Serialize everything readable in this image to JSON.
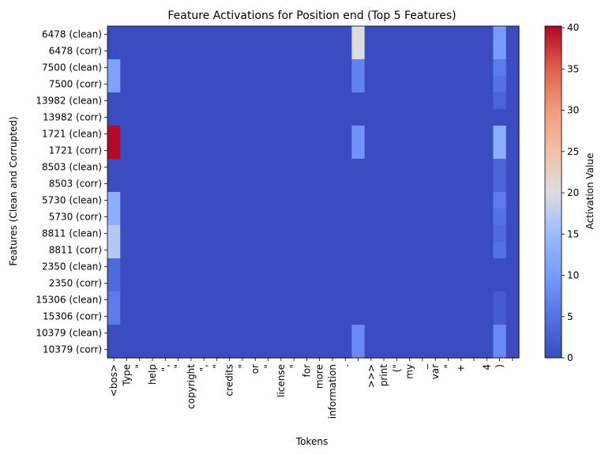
{
  "chart_data": {
    "type": "heatmap",
    "title": "Feature Activations for Position end (Top 5 Features)",
    "xlabel": "Tokens",
    "ylabel": "Features (Clean and Corrupted)",
    "colorbar_label": "Activation Value",
    "colormap": "coolwarm",
    "vmin": 0,
    "vmax": 40.2,
    "colorbar_ticks": [
      0,
      5,
      10,
      15,
      20,
      25,
      30,
      35,
      40
    ],
    "row_labels": [
      "6478 (clean)",
      "6478 (corr)",
      "7500 (clean)",
      "7500 (corr)",
      "13982 (clean)",
      "13982 (corr)",
      "1721 (clean)",
      "1721 (corr)",
      "8503 (clean)",
      "8503 (corr)",
      "5730 (clean)",
      "5730 (corr)",
      "8811 (clean)",
      "8811 (corr)",
      "2350 (clean)",
      "2350 (corr)",
      "15306 (clean)",
      "15306 (corr)",
      "10379 (clean)",
      "10379 (corr)"
    ],
    "col_labels": [
      "<bos>",
      "Type",
      "\"",
      "help",
      "\",",
      "\"",
      "copyright",
      "\",",
      "\"",
      "credits",
      "\"",
      "or",
      "\"",
      "license",
      "\"",
      "for",
      "more",
      "information",
      ".",
      "",
      ">>>",
      "print",
      "(\"",
      "my",
      "_",
      "var",
      "\"",
      "+",
      "",
      "4",
      ")",
      ""
    ],
    "highlights": [
      {
        "row": 0,
        "col": 19,
        "value": 20
      },
      {
        "row": 1,
        "col": 19,
        "value": 20
      },
      {
        "row": 0,
        "col": 30,
        "value": 10
      },
      {
        "row": 1,
        "col": 30,
        "value": 10
      },
      {
        "row": 2,
        "col": 0,
        "value": 11
      },
      {
        "row": 3,
        "col": 0,
        "value": 11
      },
      {
        "row": 2,
        "col": 19,
        "value": 7
      },
      {
        "row": 3,
        "col": 19,
        "value": 7
      },
      {
        "row": 2,
        "col": 30,
        "value": 6
      },
      {
        "row": 3,
        "col": 30,
        "value": 5
      },
      {
        "row": 4,
        "col": 30,
        "value": 3
      },
      {
        "row": 6,
        "col": 0,
        "value": 40
      },
      {
        "row": 7,
        "col": 0,
        "value": 40
      },
      {
        "row": 6,
        "col": 19,
        "value": 9
      },
      {
        "row": 7,
        "col": 19,
        "value": 9
      },
      {
        "row": 6,
        "col": 30,
        "value": 13
      },
      {
        "row": 7,
        "col": 30,
        "value": 13
      },
      {
        "row": 8,
        "col": 30,
        "value": 3
      },
      {
        "row": 9,
        "col": 30,
        "value": 3
      },
      {
        "row": 10,
        "col": 0,
        "value": 13
      },
      {
        "row": 11,
        "col": 0,
        "value": 13
      },
      {
        "row": 10,
        "col": 30,
        "value": 6
      },
      {
        "row": 11,
        "col": 30,
        "value": 5
      },
      {
        "row": 12,
        "col": 0,
        "value": 17
      },
      {
        "row": 13,
        "col": 0,
        "value": 17
      },
      {
        "row": 12,
        "col": 30,
        "value": 4
      },
      {
        "row": 13,
        "col": 30,
        "value": 5
      },
      {
        "row": 14,
        "col": 0,
        "value": 4
      },
      {
        "row": 15,
        "col": 0,
        "value": 4
      },
      {
        "row": 16,
        "col": 0,
        "value": 6
      },
      {
        "row": 17,
        "col": 0,
        "value": 6
      },
      {
        "row": 16,
        "col": 30,
        "value": 2
      },
      {
        "row": 17,
        "col": 30,
        "value": 2
      },
      {
        "row": 18,
        "col": 19,
        "value": 8
      },
      {
        "row": 19,
        "col": 19,
        "value": 8
      },
      {
        "row": 18,
        "col": 30,
        "value": 8
      },
      {
        "row": 19,
        "col": 30,
        "value": 8
      }
    ],
    "base_value": 0
  }
}
